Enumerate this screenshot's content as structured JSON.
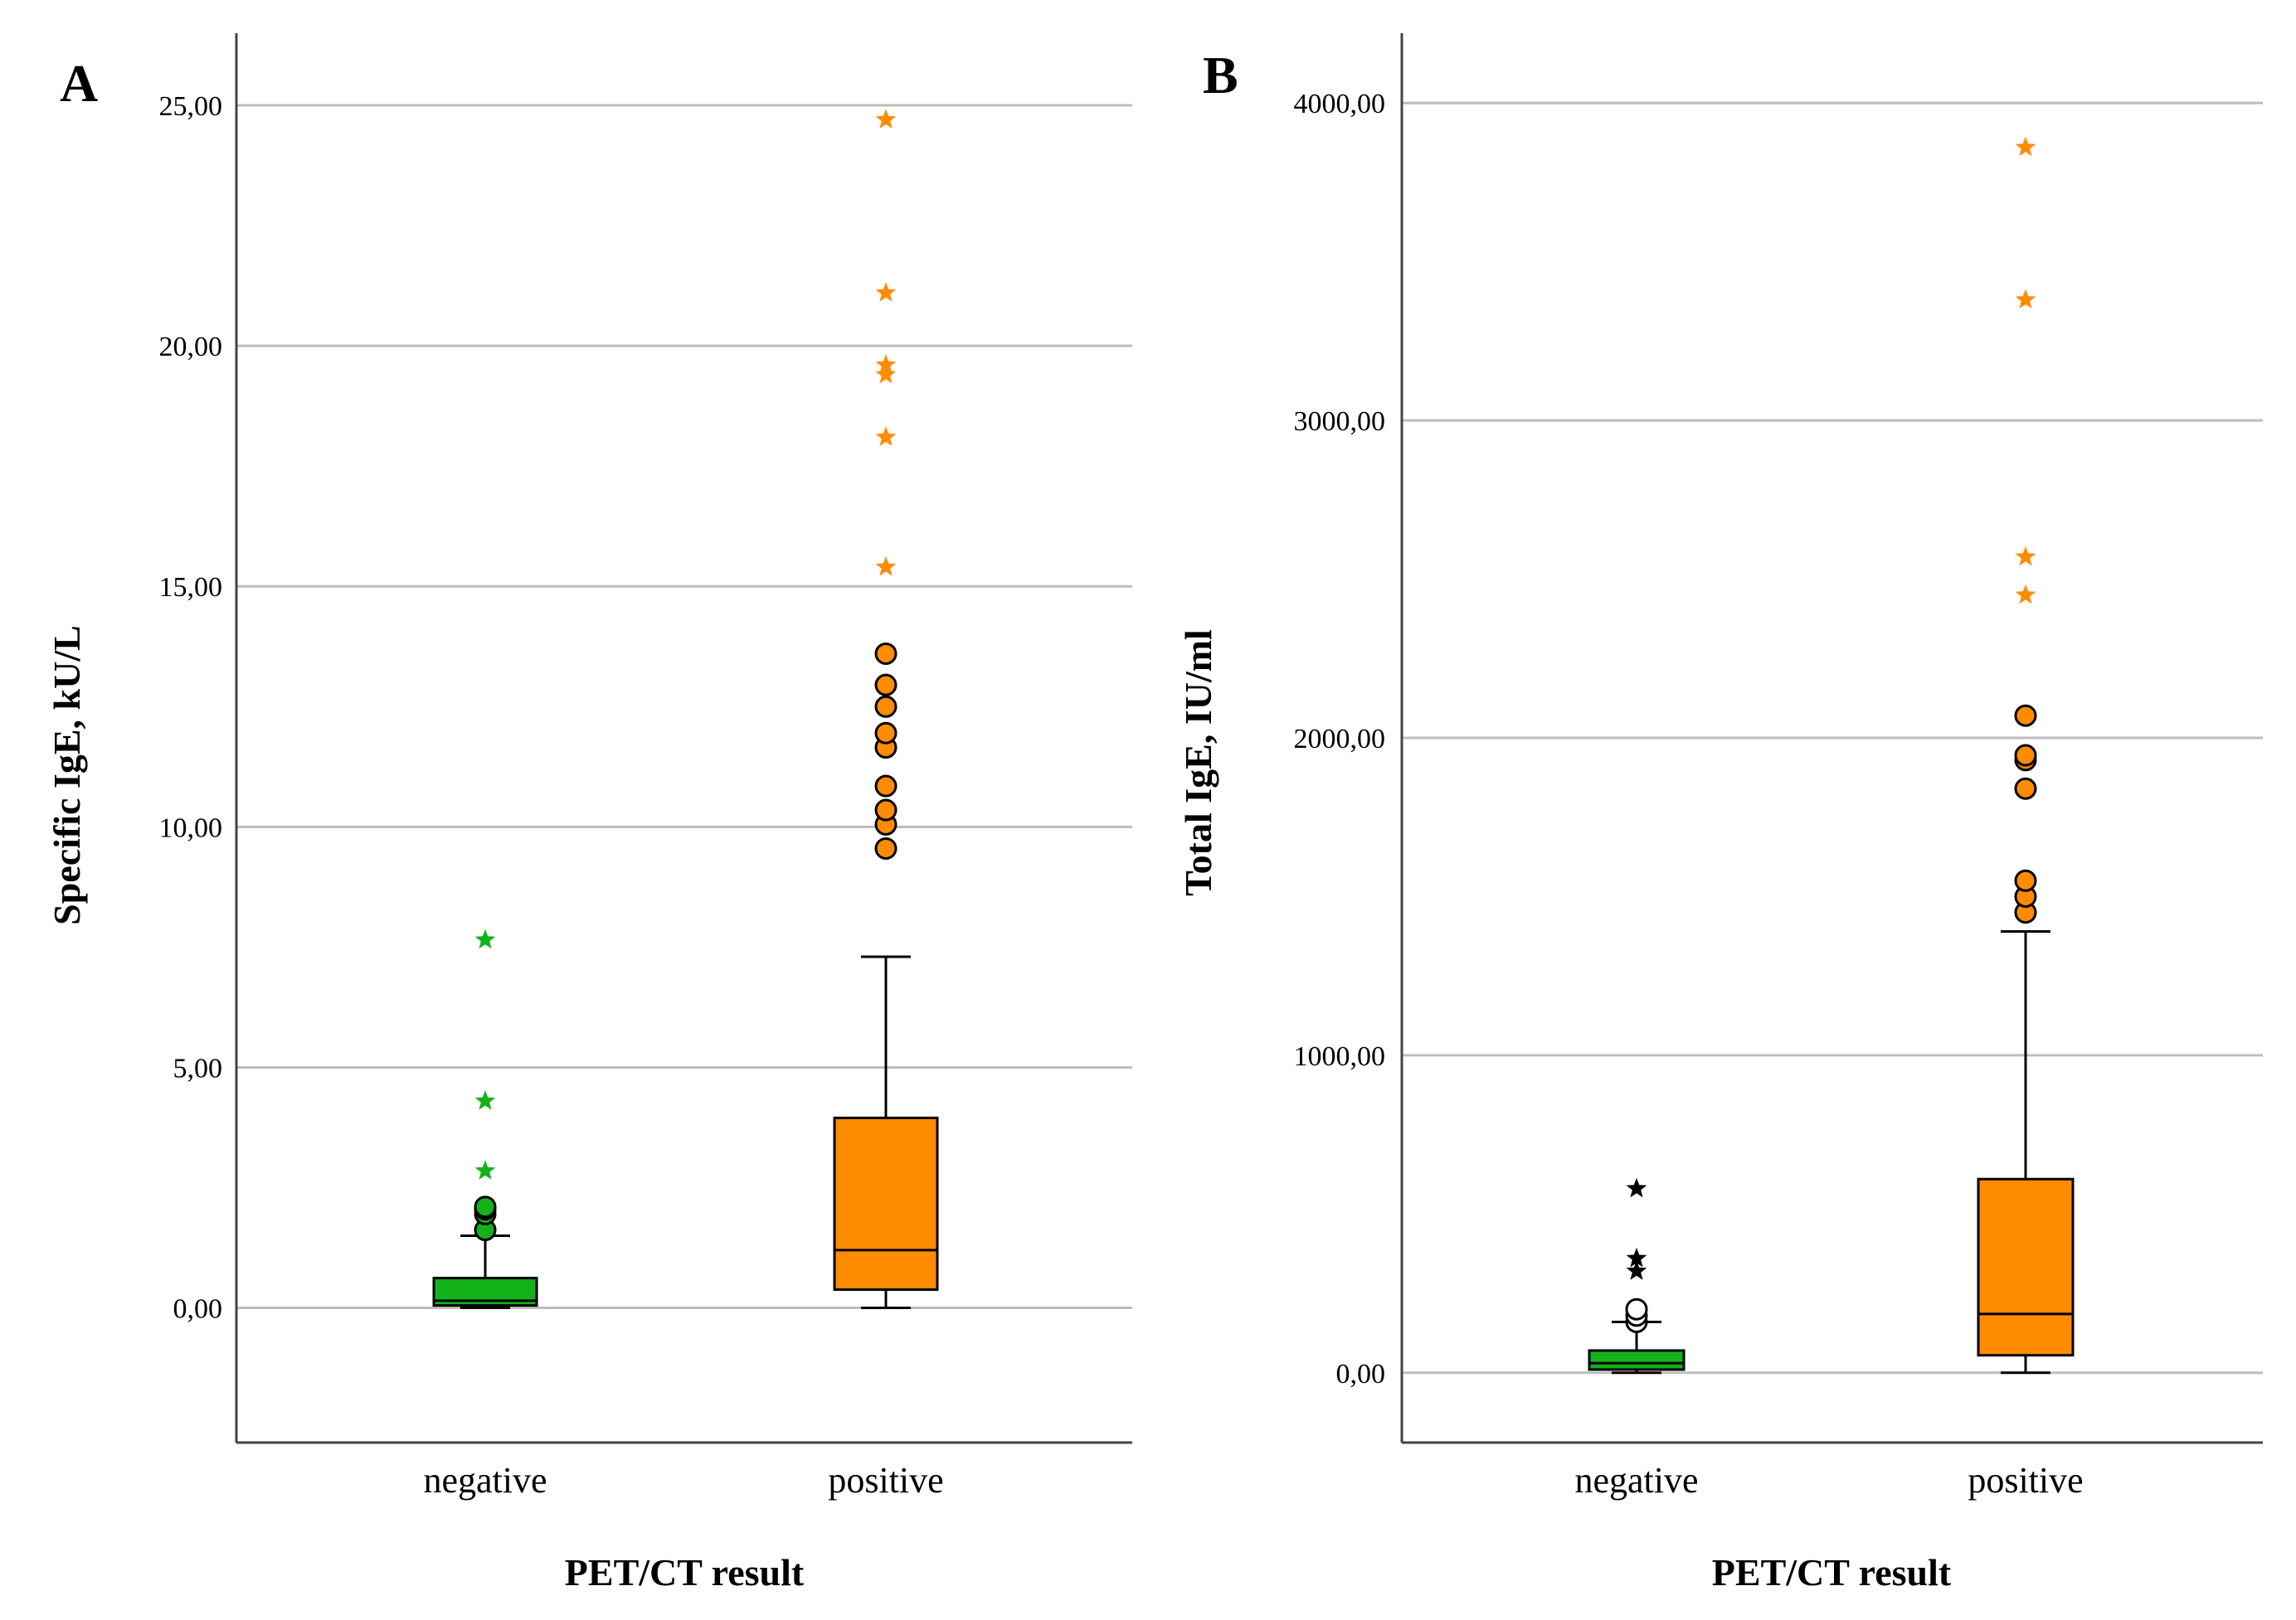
{
  "chart_data": [
    {
      "panel": "A",
      "type": "box",
      "xlabel": "PET/CT result",
      "ylabel": "Specific IgE, kU/L",
      "ylim": [
        -2.8,
        26.5
      ],
      "yticks": [
        0,
        5,
        10,
        15,
        20,
        25
      ],
      "ytick_labels": [
        "0,00",
        "5,00",
        "10,00",
        "15,00",
        "20,00",
        "25,00"
      ],
      "grid": "horizontal",
      "categories": [
        "negative",
        "positive"
      ],
      "boxes": [
        {
          "category": "negative",
          "color": "#13b21b",
          "min": 0.0,
          "q1": 0.05,
          "median": 0.15,
          "q3": 0.62,
          "max": 1.5,
          "outliers": [
            1.62,
            1.95,
            2.05,
            2.1
          ],
          "extremes": [
            2.85,
            4.3,
            7.65
          ]
        },
        {
          "category": "positive",
          "color": "#ff8c00",
          "min": 0.0,
          "q1": 0.38,
          "median": 1.2,
          "q3": 3.95,
          "max": 7.3,
          "outliers": [
            9.55,
            10.05,
            10.35,
            10.85,
            11.65,
            11.95,
            12.5,
            12.95,
            13.6
          ],
          "extremes": [
            15.4,
            18.1,
            19.4,
            19.6,
            21.1,
            24.7
          ]
        }
      ]
    },
    {
      "panel": "B",
      "type": "box",
      "xlabel": "PET/CT result",
      "ylabel": "Total IgE, IU/ml",
      "ylim": [
        -220,
        4220
      ],
      "yticks": [
        0,
        1000,
        2000,
        3000,
        4000
      ],
      "ytick_labels": [
        "0,00",
        "1000,00",
        "2000,00",
        "3000,00",
        "4000,00"
      ],
      "grid": "horizontal",
      "categories": [
        "negative",
        "positive"
      ],
      "boxes": [
        {
          "category": "negative",
          "color": "#13b21b",
          "min": 0,
          "q1": 10,
          "median": 30,
          "q3": 70,
          "max": 160,
          "outliers": [
            160,
            180,
            200
          ],
          "outlier_color": "#ffffff",
          "extremes": [
            320,
            360,
            580
          ],
          "extreme_color": "#000000"
        },
        {
          "category": "positive",
          "color": "#ff8c00",
          "min": 0,
          "q1": 55,
          "median": 185,
          "q3": 610,
          "max": 1390,
          "outliers": [
            1450,
            1500,
            1550,
            1840,
            1930,
            1945,
            2070
          ],
          "extremes": [
            2450,
            2570,
            3380,
            3860
          ]
        }
      ]
    }
  ]
}
